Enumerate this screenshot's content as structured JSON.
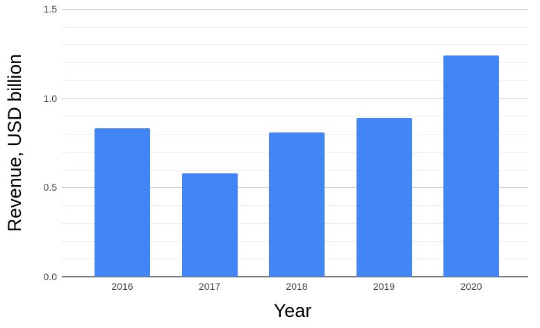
{
  "chart_data": {
    "type": "bar",
    "categories": [
      "2016",
      "2017",
      "2018",
      "2019",
      "2020"
    ],
    "values": [
      0.83,
      0.58,
      0.81,
      0.89,
      1.24
    ],
    "xlabel": "Year",
    "ylabel": "Revenue, USD billion",
    "ylim": [
      0,
      1.5
    ],
    "ytick_labels": [
      "0.0",
      "0.5",
      "1.0",
      "1.5"
    ],
    "minor_gridline_step": 0.1,
    "major_gridline_step": 0.5,
    "grid": true,
    "legend": "none",
    "bar_color": "#4285f4"
  },
  "colors": {
    "background": "#ffffff",
    "bar": "#4285f4",
    "axis_line": "#757575",
    "major_gridline": "#cccccc",
    "minor_gridline": "#ebebeb",
    "tick_label": "#3c4043",
    "axis_title": "#000000"
  }
}
